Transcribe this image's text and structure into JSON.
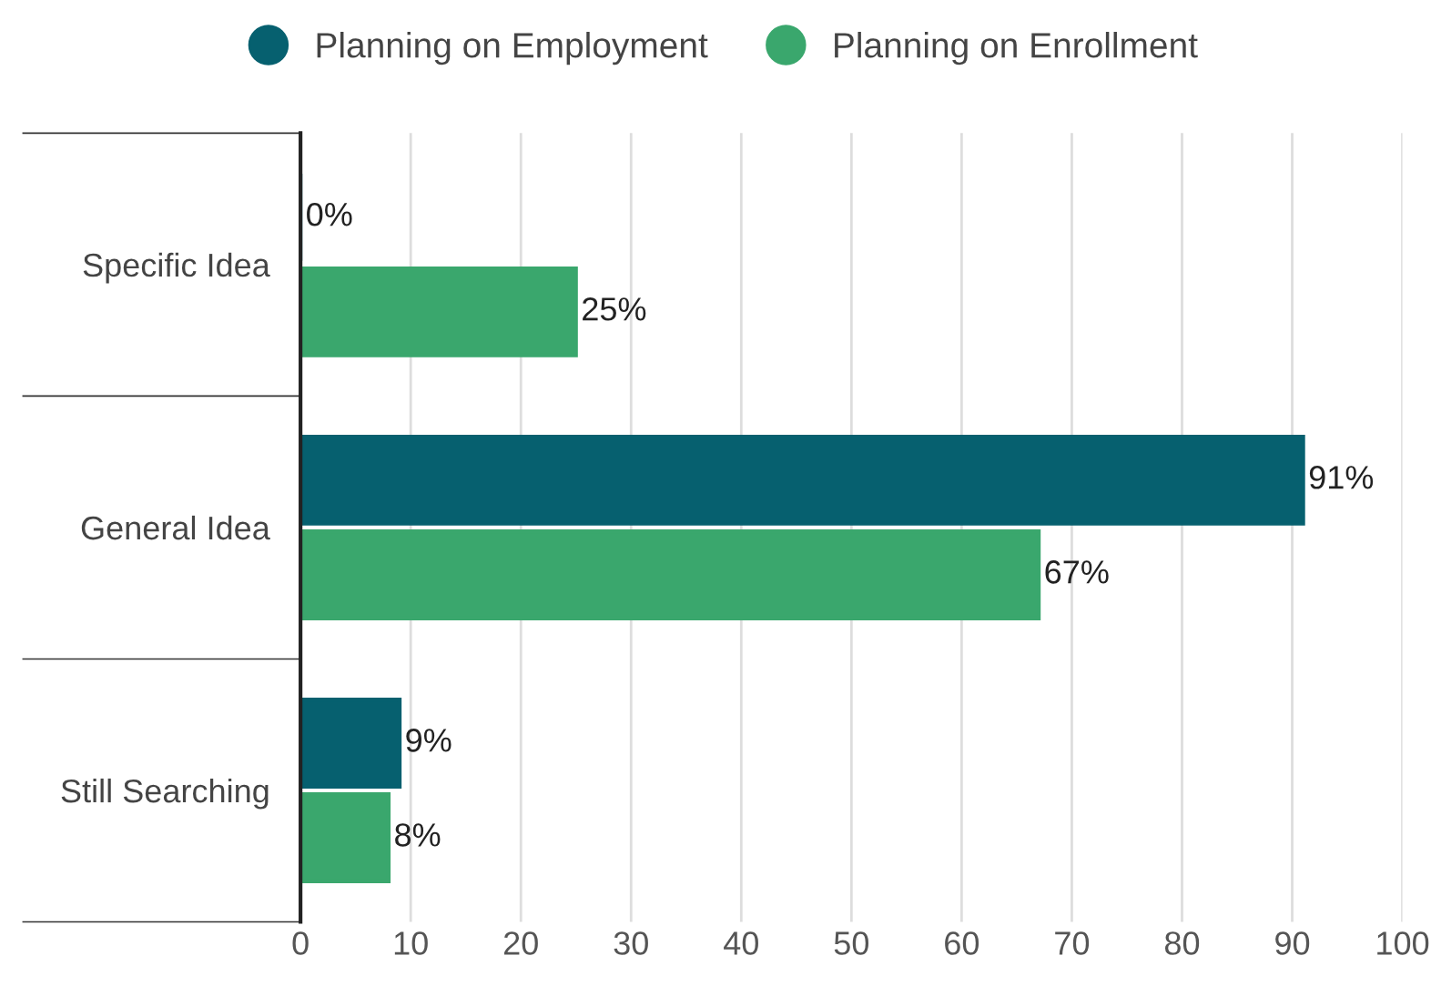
{
  "chart_data": {
    "type": "bar",
    "orientation": "horizontal",
    "categories": [
      "Specific Idea",
      "General Idea",
      "Still Searching"
    ],
    "series": [
      {
        "name": "Planning on Employment",
        "color": "#06606f",
        "values": [
          0,
          91,
          9
        ],
        "value_labels": [
          "0%",
          "91%",
          "9%"
        ]
      },
      {
        "name": "Planning on Enrollment",
        "color": "#3aa76d",
        "values": [
          25,
          67,
          8
        ],
        "value_labels": [
          "25%",
          "67%",
          "8%"
        ]
      }
    ],
    "xlim": [
      0,
      100
    ],
    "xticks": [
      0,
      10,
      20,
      30,
      40,
      50,
      60,
      70,
      80,
      90,
      100
    ],
    "grid": "x",
    "legend": "top"
  }
}
